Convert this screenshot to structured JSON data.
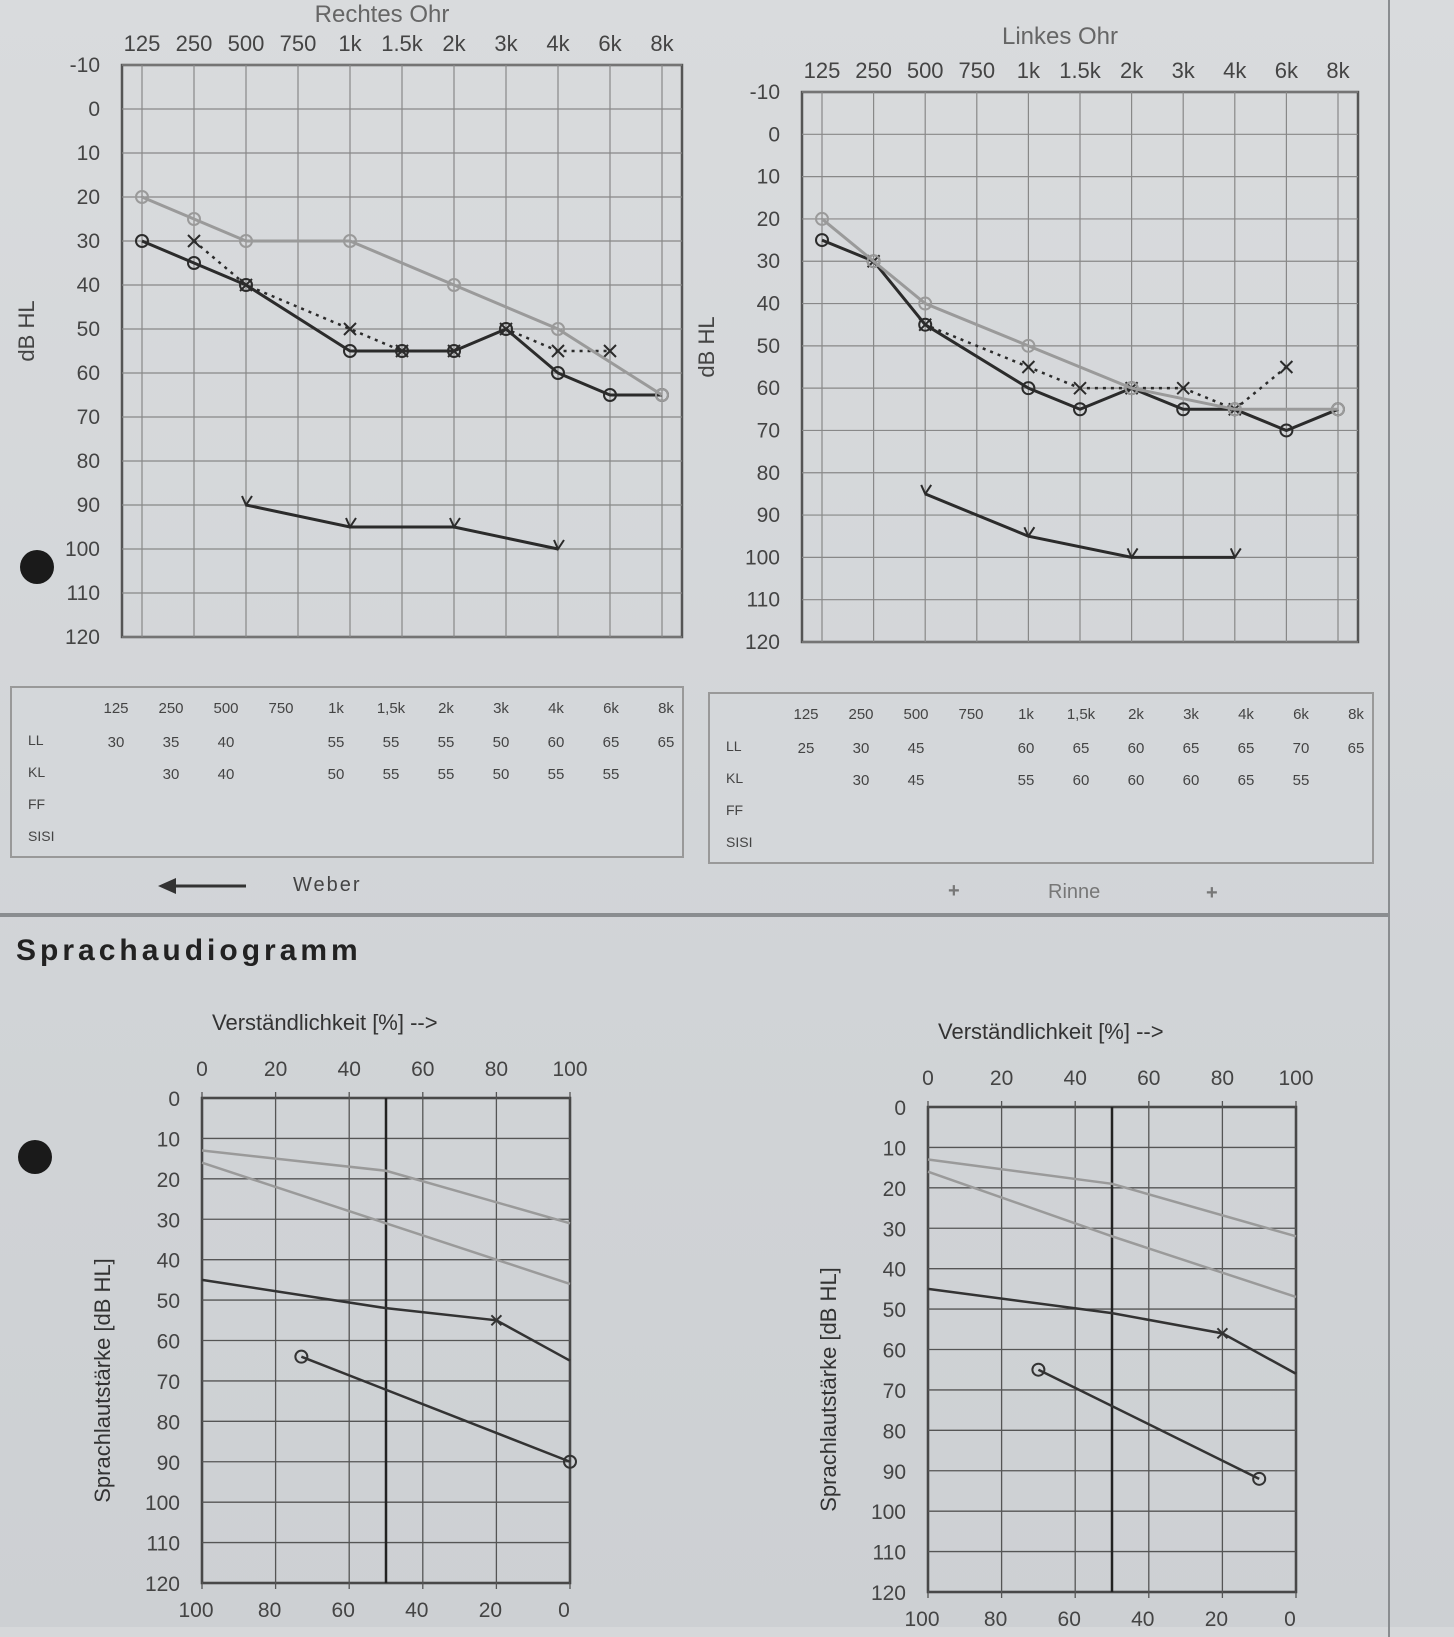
{
  "audiogram": {
    "freq_labels": [
      "125",
      "250",
      "500",
      "750",
      "1k",
      "1.5k",
      "2k",
      "3k",
      "4k",
      "6k",
      "8k"
    ],
    "db_labels": [
      "-10",
      "0",
      "10",
      "20",
      "30",
      "40",
      "50",
      "60",
      "70",
      "80",
      "90",
      "100",
      "110",
      "120"
    ],
    "ylabel": "dB HL",
    "weber_label": "Weber",
    "rinne_label": "Rinne",
    "rinne_left_sign": "+",
    "rinne_right_sign": "+"
  },
  "table": {
    "headers": [
      "125",
      "250",
      "500",
      "750",
      "1k",
      "1,5k",
      "2k",
      "3k",
      "4k",
      "6k",
      "8k"
    ],
    "row_labels": [
      "LL",
      "KL",
      "FF",
      "SISI"
    ]
  },
  "speech": {
    "title": "Sprachaudiogramm",
    "top_axis_label": "Verständlichkeit [%] -->",
    "top_ticks": [
      "0",
      "20",
      "40",
      "60",
      "80",
      "100"
    ],
    "bottom_ticks": [
      "100",
      "80",
      "60",
      "40",
      "20",
      "0"
    ],
    "y_ticks": [
      "0",
      "10",
      "20",
      "30",
      "40",
      "50",
      "60",
      "70",
      "80",
      "90",
      "100",
      "110",
      "120"
    ],
    "ylabel": "Sprachlautstärke [dB HL]"
  },
  "chart_data": [
    {
      "type": "line",
      "title": "Rechtes Ohr",
      "x": [
        "125",
        "250",
        "500",
        "750",
        "1k",
        "1.5k",
        "2k",
        "3k",
        "4k",
        "6k",
        "8k"
      ],
      "ylabel": "dB HL",
      "ylim": [
        -10,
        120
      ],
      "y_inverted": true,
      "series": [
        {
          "values": [
            30,
            35,
            40,
            null,
            55,
            55,
            55,
            50,
            60,
            65,
            65
          ]
        },
        {
          "values": [
            null,
            30,
            40,
            null,
            50,
            55,
            55,
            50,
            55,
            55,
            null
          ]
        },
        {
          "values": [
            20,
            25,
            30,
            null,
            30,
            null,
            40,
            null,
            50,
            null,
            65
          ]
        },
        {
          "values": [
            null,
            null,
            90,
            null,
            95,
            null,
            95,
            null,
            100,
            null,
            null
          ]
        }
      ],
      "values_row": {
        "LL": [
          30,
          35,
          40,
          null,
          55,
          55,
          55,
          50,
          60,
          65,
          65
        ],
        "KL": [
          null,
          30,
          40,
          null,
          50,
          55,
          55,
          50,
          55,
          55,
          null
        ]
      }
    },
    {
      "type": "line",
      "title": "Linkes Ohr",
      "x": [
        "125",
        "250",
        "500",
        "750",
        "1k",
        "1.5k",
        "2k",
        "3k",
        "4k",
        "6k",
        "8k"
      ],
      "ylabel": "dB HL",
      "ylim": [
        -10,
        120
      ],
      "y_inverted": true,
      "series": [
        {
          "values": [
            25,
            30,
            45,
            null,
            60,
            65,
            60,
            65,
            65,
            70,
            65
          ]
        },
        {
          "values": [
            null,
            30,
            45,
            null,
            55,
            60,
            60,
            60,
            65,
            55,
            null
          ]
        },
        {
          "values": [
            20,
            30,
            40,
            null,
            50,
            null,
            60,
            null,
            65,
            null,
            65
          ]
        },
        {
          "values": [
            null,
            null,
            85,
            null,
            95,
            null,
            100,
            null,
            100,
            null,
            null
          ]
        }
      ],
      "values_row": {
        "LL": [
          25,
          30,
          45,
          null,
          60,
          65,
          60,
          65,
          65,
          70,
          65
        ],
        "KL": [
          null,
          30,
          45,
          null,
          55,
          60,
          60,
          60,
          65,
          55,
          null
        ]
      }
    },
    {
      "type": "line",
      "title": "",
      "xlabel": "Verständlichkeit [%] -->",
      "ylabel": "Sprachlautstärke [dB HL]",
      "xlim": [
        0,
        100
      ],
      "ylim": [
        0,
        120
      ],
      "series": [
        {
          "points": [
            [
              0,
              13
            ],
            [
              50,
              18
            ],
            [
              100,
              31
            ]
          ]
        },
        {
          "points": [
            [
              0,
              16
            ],
            [
              50,
              31
            ],
            [
              100,
              46
            ]
          ]
        },
        {
          "points": [
            [
              0,
              45
            ],
            [
              50,
              52
            ],
            [
              80,
              55
            ],
            [
              100,
              65
            ]
          ]
        },
        {
          "points": [
            [
              27,
              64
            ],
            [
              100,
              90
            ]
          ]
        }
      ]
    },
    {
      "type": "line",
      "title": "",
      "xlabel": "Verständlichkeit [%] -->",
      "ylabel": "Sprachlautstärke [dB HL]",
      "xlim": [
        0,
        100
      ],
      "ylim": [
        0,
        120
      ],
      "series": [
        {
          "points": [
            [
              0,
              13
            ],
            [
              50,
              19
            ],
            [
              100,
              32
            ]
          ]
        },
        {
          "points": [
            [
              0,
              16
            ],
            [
              50,
              32
            ],
            [
              100,
              47
            ]
          ]
        },
        {
          "points": [
            [
              0,
              45
            ],
            [
              50,
              51
            ],
            [
              80,
              56
            ],
            [
              100,
              66
            ]
          ]
        },
        {
          "points": [
            [
              30,
              65
            ],
            [
              90,
              92
            ]
          ]
        }
      ]
    }
  ]
}
